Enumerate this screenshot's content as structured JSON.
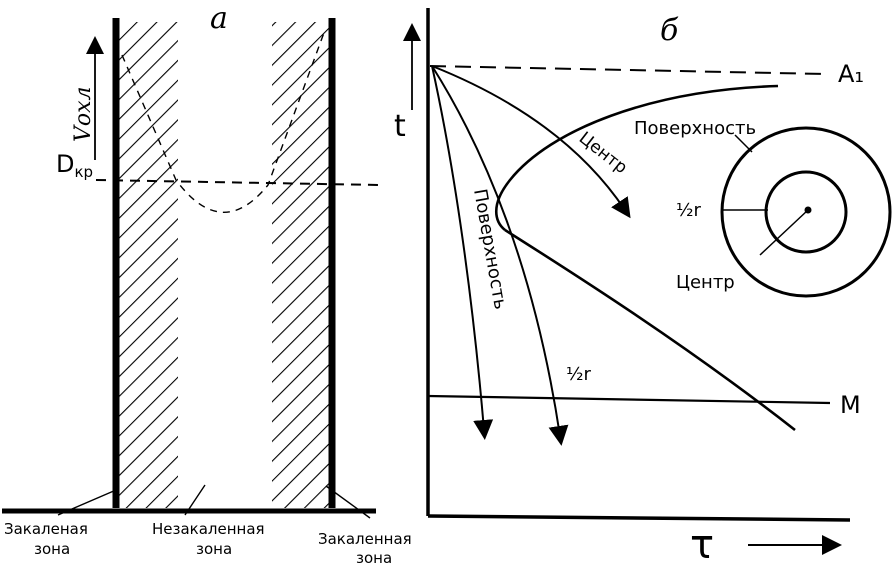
{
  "panel_a": {
    "letter": "а",
    "axis_label": "Vохл",
    "dkr_main": "D",
    "dkr_sub": "кр",
    "label_left_1": "Закаленая",
    "label_left_2": "зона",
    "label_mid_1": "Незакаленная",
    "label_mid_2": "зона",
    "label_right_1": "Закаленная",
    "label_right_2": "зона"
  },
  "panel_b": {
    "letter": "б",
    "y_axis_label": "t",
    "x_axis_label": "τ",
    "a1_label": "A₁",
    "m_label": "M",
    "curve_surface_vertical": "Поверхность",
    "curve_half_r": "½r",
    "curve_center": "Центр",
    "curve_surface_top": "Поверхность",
    "circle_half_r": "½r",
    "circle_center": "Центр"
  },
  "colors": {
    "ink": "#000000",
    "paper": "#ffffff"
  }
}
